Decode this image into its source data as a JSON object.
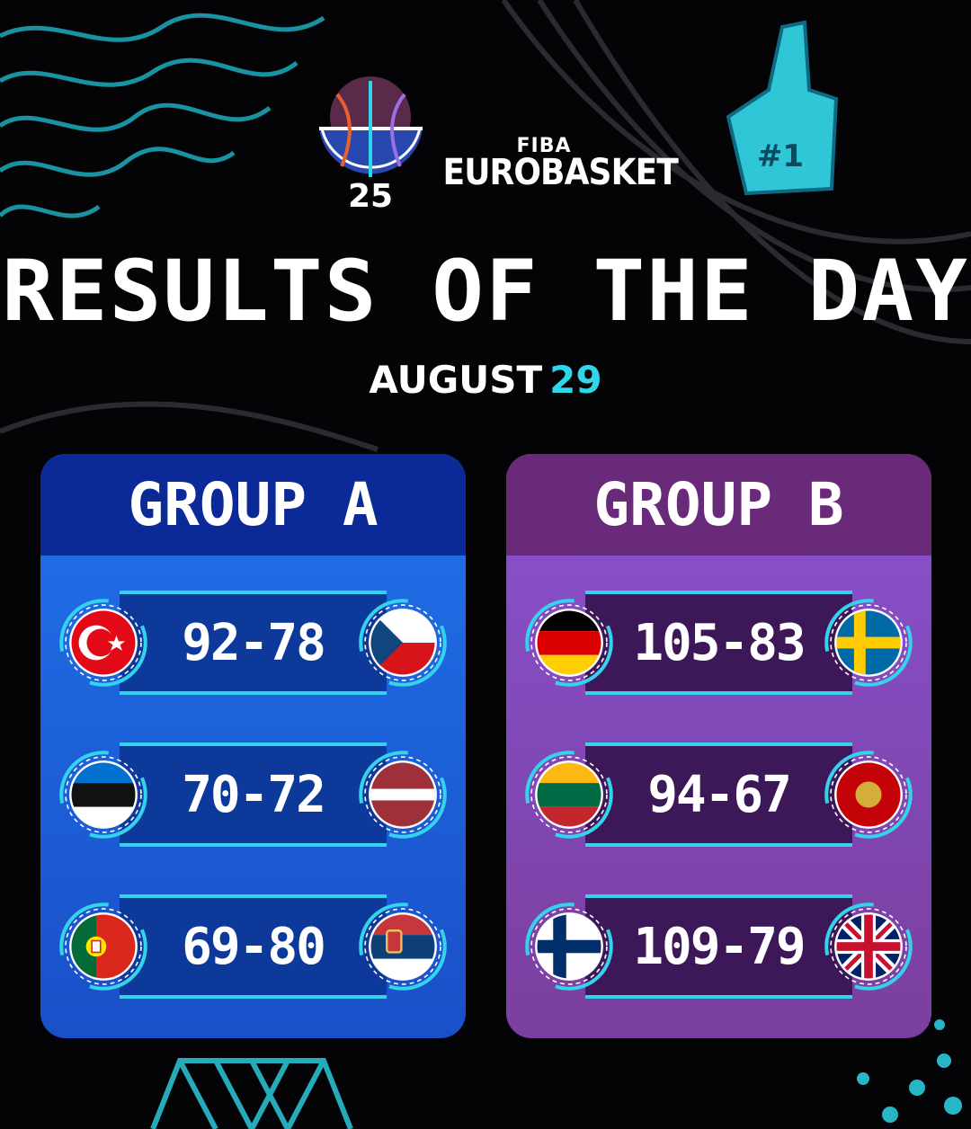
{
  "brand": {
    "fiba": "FIBA",
    "name": "EUROBASKET",
    "logo_year": "25"
  },
  "title": "RESULTS OF THE DAY",
  "date": {
    "month": "AUGUST",
    "day": "29"
  },
  "groups": [
    {
      "name": "GROUP A",
      "matches": [
        {
          "home": "Turkey",
          "score": "92-78",
          "away": "Czechia"
        },
        {
          "home": "Estonia",
          "score": "70-72",
          "away": "Latvia"
        },
        {
          "home": "Portugal",
          "score": "69-80",
          "away": "Serbia"
        }
      ]
    },
    {
      "name": "GROUP B",
      "matches": [
        {
          "home": "Germany",
          "score": "105-83",
          "away": "Sweden"
        },
        {
          "home": "Lithuania",
          "score": "94-67",
          "away": "Montenegro"
        },
        {
          "home": "Finland",
          "score": "109-79",
          "away": "Great Britain"
        }
      ]
    }
  ],
  "colors": {
    "accent": "#2fd5e8",
    "group_a": "#1f72ea",
    "group_b": "#8a52d0"
  }
}
